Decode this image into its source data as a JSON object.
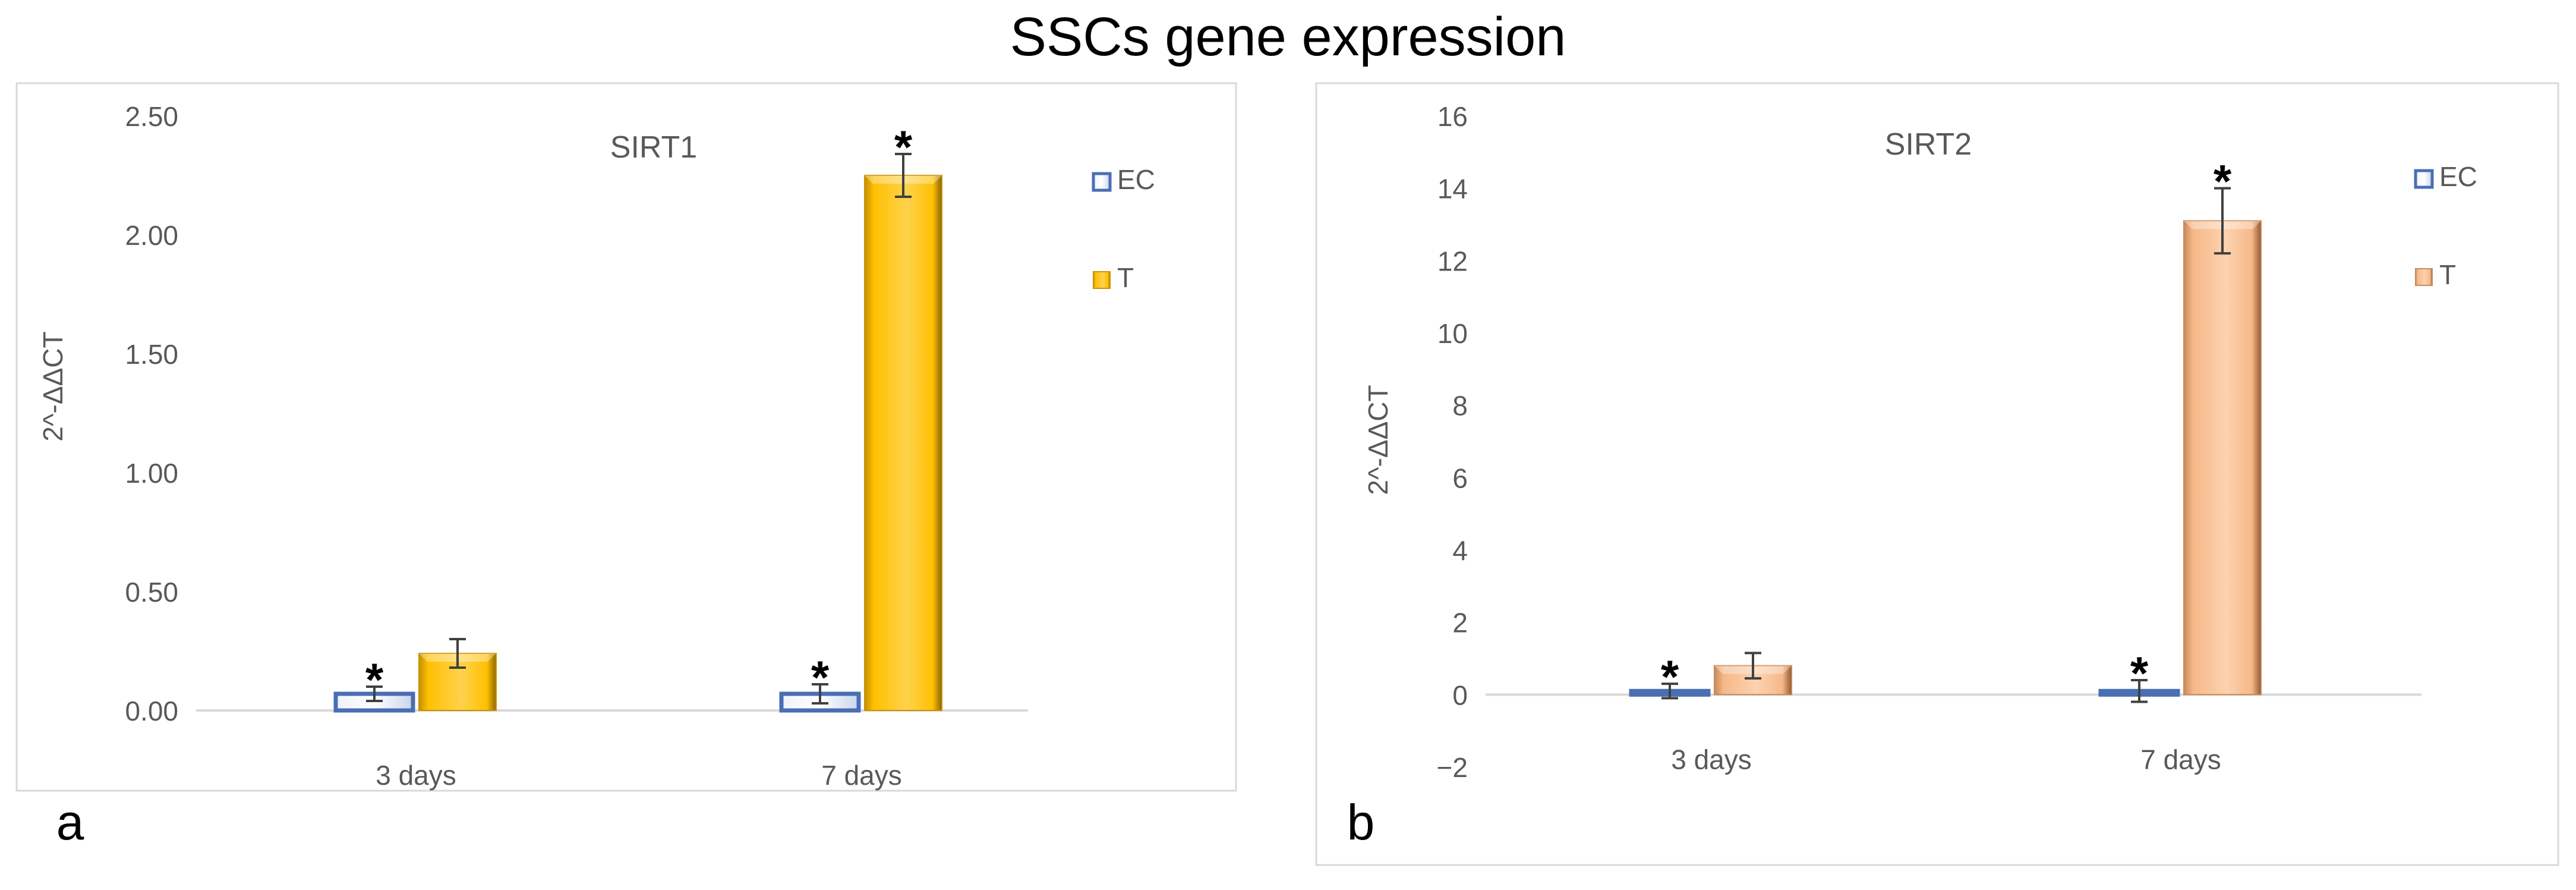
{
  "figure_title": "SSCs gene expression",
  "colors": {
    "ec_fill": "#dfe7f5",
    "ec_edge": "#4a6eb4",
    "t1_fill": "#ffc000",
    "t1_edge": "#c99300",
    "t2_fill": "#f6b888",
    "t2_edge": "#c98958",
    "axis": "#d9d9d9",
    "text": "#595959",
    "frame": "#d9d9d9"
  },
  "chart_data": [
    {
      "type": "bar",
      "panel_label": "a",
      "title": "SIRT1",
      "ylabel": "2^-ΔΔCT",
      "xlabel": "",
      "categories": [
        "3 days",
        "7 days"
      ],
      "ylim": [
        0,
        2.5
      ],
      "yticks": [
        0,
        0.5,
        1,
        1.5,
        2,
        2.5
      ],
      "tick_decimals": 2,
      "series": [
        {
          "name": "EC",
          "values": [
            0.07,
            0.07
          ],
          "errors": [
            0.03,
            0.04
          ],
          "asterisk": [
            true,
            true
          ]
        },
        {
          "name": "T",
          "values": [
            0.24,
            2.25
          ],
          "errors": [
            0.06,
            0.09
          ],
          "asterisk": [
            false,
            true
          ]
        }
      ],
      "significance_mark": "*",
      "legend": [
        "EC",
        "T"
      ],
      "legend_position": "top-right"
    },
    {
      "type": "bar",
      "panel_label": "b",
      "title": "SIRT2",
      "ylabel": "2^-ΔΔCT",
      "xlabel": "",
      "categories": [
        "3 days",
        "7 days"
      ],
      "ylim": [
        -2,
        16
      ],
      "yticks": [
        -2,
        0,
        2,
        4,
        6,
        8,
        10,
        12,
        14,
        16
      ],
      "tick_labels": [
        "−2",
        "0",
        "2",
        "4",
        "6",
        "8",
        "10",
        "12",
        "14",
        "16"
      ],
      "tick_decimals": 0,
      "series": [
        {
          "name": "EC",
          "values": [
            0.1,
            0.1
          ],
          "errors": [
            0.2,
            0.3
          ],
          "asterisk": [
            true,
            true
          ]
        },
        {
          "name": "T",
          "values": [
            0.8,
            13.1
          ],
          "errors": [
            0.35,
            0.9
          ],
          "asterisk": [
            false,
            true
          ]
        }
      ],
      "significance_mark": "*",
      "legend": [
        "EC",
        "T"
      ],
      "legend_position": "top-right"
    }
  ]
}
